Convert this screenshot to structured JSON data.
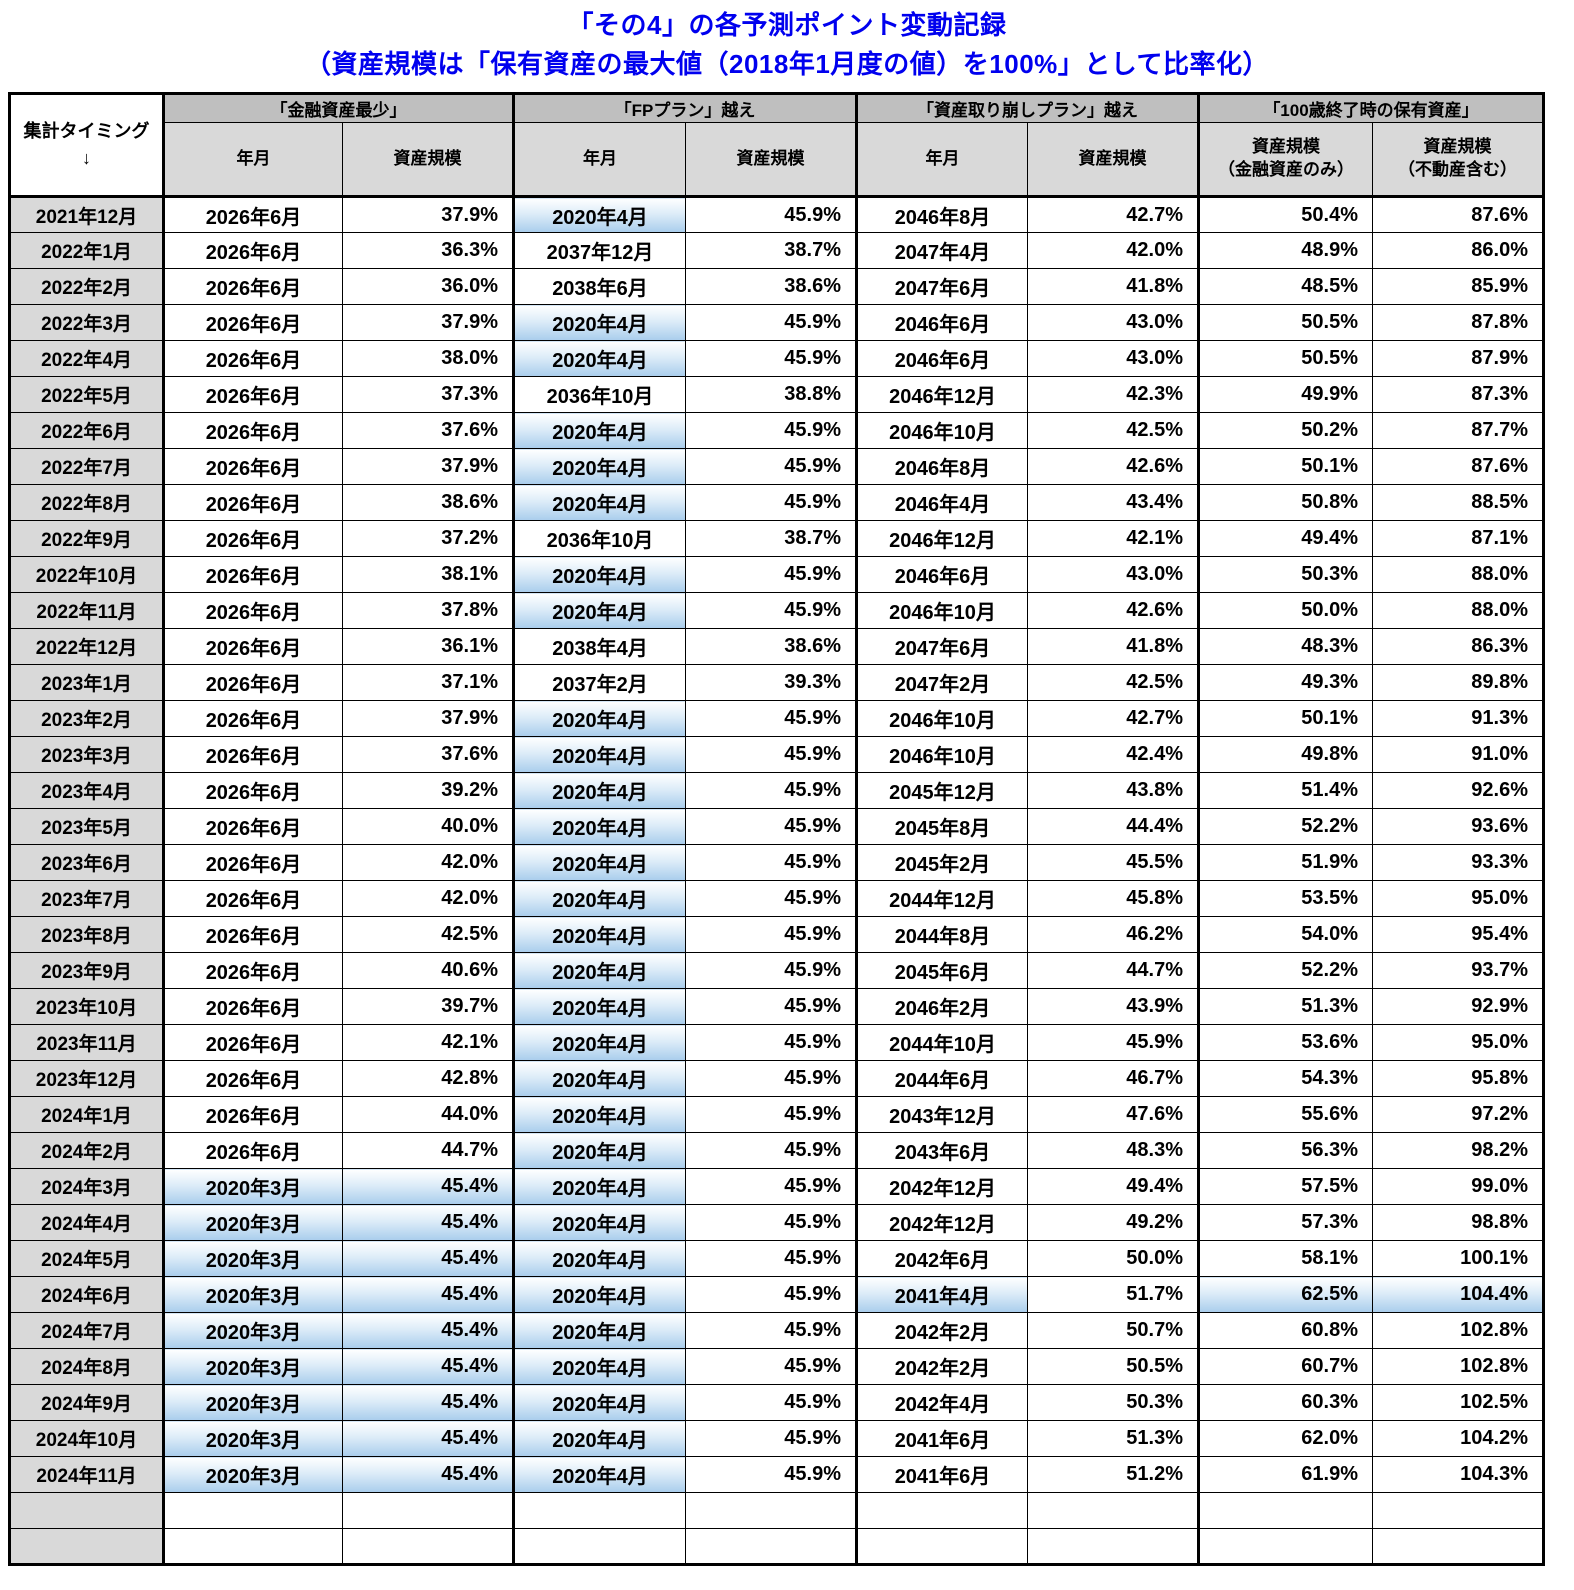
{
  "title": {
    "line1": "「その4」の各予測ポイント変動記録",
    "line2": "（資産規模は「保有資産の最大値（2018年1月度の値）を100%」として比率化）"
  },
  "colors": {
    "title_blue": "#0000ee",
    "header_group_bg": "#bfbfbf",
    "header_sub_bg": "#d9d9d9",
    "highlight_top": "#ffffff",
    "highlight_bottom": "#a9cdec"
  },
  "table": {
    "timing_header": "集計タイミング",
    "timing_arrow": "↓",
    "groups": [
      {
        "label": "「金融資産最少」",
        "sub": [
          "年月",
          "資産規模"
        ]
      },
      {
        "label": "「FPプラン」越え",
        "sub": [
          "年月",
          "資産規模"
        ]
      },
      {
        "label": "「資産取り崩しプラン」越え",
        "sub": [
          "年月",
          "資産規模"
        ]
      },
      {
        "label": "「100歳終了時の保有資産」",
        "sub": [
          "資産規模\n（金融資産のみ）",
          "資産規模\n（不動産含む）"
        ]
      }
    ],
    "empty_row_count": 2,
    "rows": [
      {
        "timing": "2021年12月",
        "c": [
          "2026年6月",
          "37.9%",
          "2020年4月",
          "45.9%",
          "2046年8月",
          "42.7%",
          "50.4%",
          "87.6%"
        ],
        "hl": [
          2
        ]
      },
      {
        "timing": "2022年1月",
        "c": [
          "2026年6月",
          "36.3%",
          "2037年12月",
          "38.7%",
          "2047年4月",
          "42.0%",
          "48.9%",
          "86.0%"
        ],
        "hl": []
      },
      {
        "timing": "2022年2月",
        "c": [
          "2026年6月",
          "36.0%",
          "2038年6月",
          "38.6%",
          "2047年6月",
          "41.8%",
          "48.5%",
          "85.9%"
        ],
        "hl": []
      },
      {
        "timing": "2022年3月",
        "c": [
          "2026年6月",
          "37.9%",
          "2020年4月",
          "45.9%",
          "2046年6月",
          "43.0%",
          "50.5%",
          "87.8%"
        ],
        "hl": [
          2
        ]
      },
      {
        "timing": "2022年4月",
        "c": [
          "2026年6月",
          "38.0%",
          "2020年4月",
          "45.9%",
          "2046年6月",
          "43.0%",
          "50.5%",
          "87.9%"
        ],
        "hl": [
          2
        ]
      },
      {
        "timing": "2022年5月",
        "c": [
          "2026年6月",
          "37.3%",
          "2036年10月",
          "38.8%",
          "2046年12月",
          "42.3%",
          "49.9%",
          "87.3%"
        ],
        "hl": []
      },
      {
        "timing": "2022年6月",
        "c": [
          "2026年6月",
          "37.6%",
          "2020年4月",
          "45.9%",
          "2046年10月",
          "42.5%",
          "50.2%",
          "87.7%"
        ],
        "hl": [
          2
        ]
      },
      {
        "timing": "2022年7月",
        "c": [
          "2026年6月",
          "37.9%",
          "2020年4月",
          "45.9%",
          "2046年8月",
          "42.6%",
          "50.1%",
          "87.6%"
        ],
        "hl": [
          2
        ]
      },
      {
        "timing": "2022年8月",
        "c": [
          "2026年6月",
          "38.6%",
          "2020年4月",
          "45.9%",
          "2046年4月",
          "43.4%",
          "50.8%",
          "88.5%"
        ],
        "hl": [
          2
        ]
      },
      {
        "timing": "2022年9月",
        "c": [
          "2026年6月",
          "37.2%",
          "2036年10月",
          "38.7%",
          "2046年12月",
          "42.1%",
          "49.4%",
          "87.1%"
        ],
        "hl": []
      },
      {
        "timing": "2022年10月",
        "c": [
          "2026年6月",
          "38.1%",
          "2020年4月",
          "45.9%",
          "2046年6月",
          "43.0%",
          "50.3%",
          "88.0%"
        ],
        "hl": [
          2
        ]
      },
      {
        "timing": "2022年11月",
        "c": [
          "2026年6月",
          "37.8%",
          "2020年4月",
          "45.9%",
          "2046年10月",
          "42.6%",
          "50.0%",
          "88.0%"
        ],
        "hl": [
          2
        ]
      },
      {
        "timing": "2022年12月",
        "c": [
          "2026年6月",
          "36.1%",
          "2038年4月",
          "38.6%",
          "2047年6月",
          "41.8%",
          "48.3%",
          "86.3%"
        ],
        "hl": []
      },
      {
        "timing": "2023年1月",
        "c": [
          "2026年6月",
          "37.1%",
          "2037年2月",
          "39.3%",
          "2047年2月",
          "42.5%",
          "49.3%",
          "89.8%"
        ],
        "hl": []
      },
      {
        "timing": "2023年2月",
        "c": [
          "2026年6月",
          "37.9%",
          "2020年4月",
          "45.9%",
          "2046年10月",
          "42.7%",
          "50.1%",
          "91.3%"
        ],
        "hl": [
          2
        ]
      },
      {
        "timing": "2023年3月",
        "c": [
          "2026年6月",
          "37.6%",
          "2020年4月",
          "45.9%",
          "2046年10月",
          "42.4%",
          "49.8%",
          "91.0%"
        ],
        "hl": [
          2
        ]
      },
      {
        "timing": "2023年4月",
        "c": [
          "2026年6月",
          "39.2%",
          "2020年4月",
          "45.9%",
          "2045年12月",
          "43.8%",
          "51.4%",
          "92.6%"
        ],
        "hl": [
          2
        ]
      },
      {
        "timing": "2023年5月",
        "c": [
          "2026年6月",
          "40.0%",
          "2020年4月",
          "45.9%",
          "2045年8月",
          "44.4%",
          "52.2%",
          "93.6%"
        ],
        "hl": [
          2
        ]
      },
      {
        "timing": "2023年6月",
        "c": [
          "2026年6月",
          "42.0%",
          "2020年4月",
          "45.9%",
          "2045年2月",
          "45.5%",
          "51.9%",
          "93.3%"
        ],
        "hl": [
          2
        ]
      },
      {
        "timing": "2023年7月",
        "c": [
          "2026年6月",
          "42.0%",
          "2020年4月",
          "45.9%",
          "2044年12月",
          "45.8%",
          "53.5%",
          "95.0%"
        ],
        "hl": [
          2
        ]
      },
      {
        "timing": "2023年8月",
        "c": [
          "2026年6月",
          "42.5%",
          "2020年4月",
          "45.9%",
          "2044年8月",
          "46.2%",
          "54.0%",
          "95.4%"
        ],
        "hl": [
          2
        ]
      },
      {
        "timing": "2023年9月",
        "c": [
          "2026年6月",
          "40.6%",
          "2020年4月",
          "45.9%",
          "2045年6月",
          "44.7%",
          "52.2%",
          "93.7%"
        ],
        "hl": [
          2
        ]
      },
      {
        "timing": "2023年10月",
        "c": [
          "2026年6月",
          "39.7%",
          "2020年4月",
          "45.9%",
          "2046年2月",
          "43.9%",
          "51.3%",
          "92.9%"
        ],
        "hl": [
          2
        ]
      },
      {
        "timing": "2023年11月",
        "c": [
          "2026年6月",
          "42.1%",
          "2020年4月",
          "45.9%",
          "2044年10月",
          "45.9%",
          "53.6%",
          "95.0%"
        ],
        "hl": [
          2
        ]
      },
      {
        "timing": "2023年12月",
        "c": [
          "2026年6月",
          "42.8%",
          "2020年4月",
          "45.9%",
          "2044年6月",
          "46.7%",
          "54.3%",
          "95.8%"
        ],
        "hl": [
          2
        ]
      },
      {
        "timing": "2024年1月",
        "c": [
          "2026年6月",
          "44.0%",
          "2020年4月",
          "45.9%",
          "2043年12月",
          "47.6%",
          "55.6%",
          "97.2%"
        ],
        "hl": [
          2
        ]
      },
      {
        "timing": "2024年2月",
        "c": [
          "2026年6月",
          "44.7%",
          "2020年4月",
          "45.9%",
          "2043年6月",
          "48.3%",
          "56.3%",
          "98.2%"
        ],
        "hl": [
          2
        ]
      },
      {
        "timing": "2024年3月",
        "c": [
          "2020年3月",
          "45.4%",
          "2020年4月",
          "45.9%",
          "2042年12月",
          "49.4%",
          "57.5%",
          "99.0%"
        ],
        "hl": [
          0,
          1,
          2
        ]
      },
      {
        "timing": "2024年4月",
        "c": [
          "2020年3月",
          "45.4%",
          "2020年4月",
          "45.9%",
          "2042年12月",
          "49.2%",
          "57.3%",
          "98.8%"
        ],
        "hl": [
          0,
          1,
          2
        ]
      },
      {
        "timing": "2024年5月",
        "c": [
          "2020年3月",
          "45.4%",
          "2020年4月",
          "45.9%",
          "2042年6月",
          "50.0%",
          "58.1%",
          "100.1%"
        ],
        "hl": [
          0,
          1,
          2
        ]
      },
      {
        "timing": "2024年6月",
        "c": [
          "2020年3月",
          "45.4%",
          "2020年4月",
          "45.9%",
          "2041年4月",
          "51.7%",
          "62.5%",
          "104.4%"
        ],
        "hl": [
          0,
          1,
          2,
          4,
          6,
          7
        ]
      },
      {
        "timing": "2024年7月",
        "c": [
          "2020年3月",
          "45.4%",
          "2020年4月",
          "45.9%",
          "2042年2月",
          "50.7%",
          "60.8%",
          "102.8%"
        ],
        "hl": [
          0,
          1,
          2
        ]
      },
      {
        "timing": "2024年8月",
        "c": [
          "2020年3月",
          "45.4%",
          "2020年4月",
          "45.9%",
          "2042年2月",
          "50.5%",
          "60.7%",
          "102.8%"
        ],
        "hl": [
          0,
          1,
          2
        ]
      },
      {
        "timing": "2024年9月",
        "c": [
          "2020年3月",
          "45.4%",
          "2020年4月",
          "45.9%",
          "2042年4月",
          "50.3%",
          "60.3%",
          "102.5%"
        ],
        "hl": [
          0,
          1,
          2
        ]
      },
      {
        "timing": "2024年10月",
        "c": [
          "2020年3月",
          "45.4%",
          "2020年4月",
          "45.9%",
          "2041年6月",
          "51.3%",
          "62.0%",
          "104.2%"
        ],
        "hl": [
          0,
          1,
          2
        ]
      },
      {
        "timing": "2024年11月",
        "c": [
          "2020年3月",
          "45.4%",
          "2020年4月",
          "45.9%",
          "2041年6月",
          "51.2%",
          "61.9%",
          "104.3%"
        ],
        "hl": [
          0,
          1,
          2
        ]
      }
    ]
  }
}
